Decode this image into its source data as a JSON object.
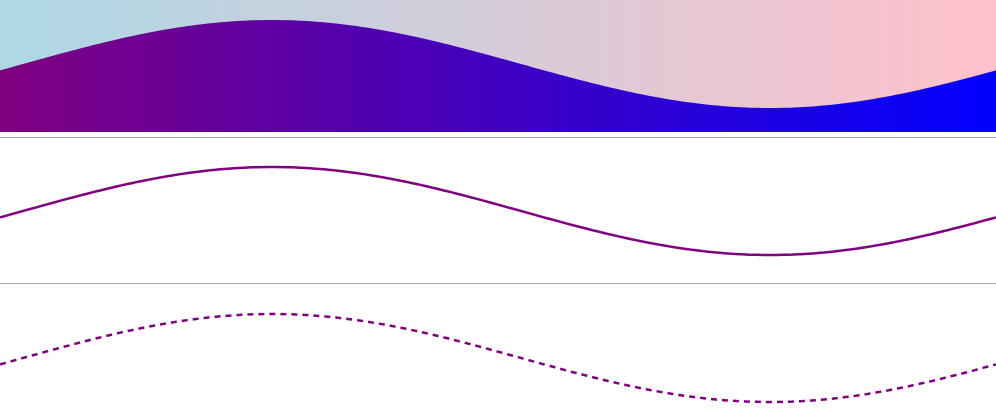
{
  "wave": {
    "amplitude": 0.5,
    "period_fraction": 0.5,
    "cycles": 1
  },
  "panels": [
    {
      "id": "filled-wave",
      "style": "filled",
      "background_gradient": [
        "#add8e6",
        "#ffc0cb"
      ],
      "fill_gradient": [
        "#800080",
        "#0000ff"
      ]
    },
    {
      "id": "solid-line-wave",
      "style": "solid",
      "stroke_color": "#800080"
    },
    {
      "id": "dashed-line-wave",
      "style": "dashed",
      "stroke_color": "#800080"
    }
  ],
  "divider_color": "#a9a9a9"
}
